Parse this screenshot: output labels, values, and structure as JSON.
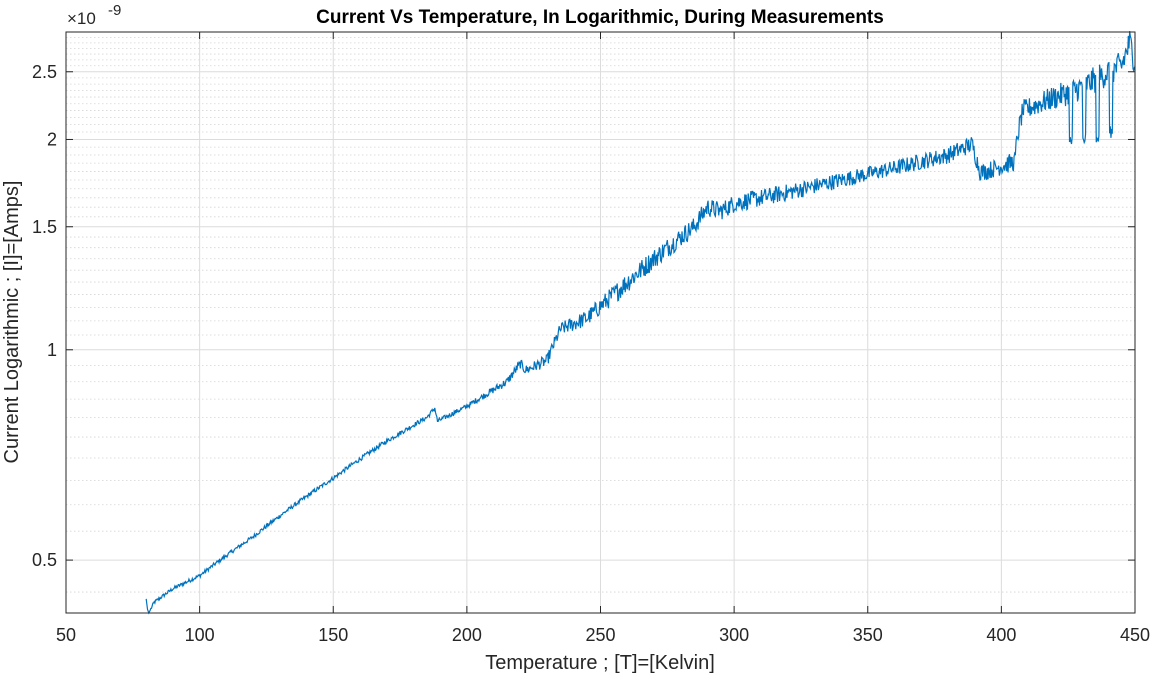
{
  "chart_data": {
    "type": "line",
    "title": "Current Vs Temperature, In Logarithmic, During Measurements",
    "xlabel": "Temperature ; [T]=[Kelvin]",
    "ylabel": "Current Logarithmic ; [I]=[Amps]",
    "y_exponent": {
      "times": "×10",
      "power": "-9"
    },
    "xlim": [
      50,
      450
    ],
    "ylim": [
      0.42,
      2.85
    ],
    "y_scale": "log",
    "grid": true,
    "minor_grid": true,
    "x_ticks": [
      50,
      100,
      150,
      200,
      250,
      300,
      350,
      400,
      450
    ],
    "x_tick_labels": [
      "50",
      "100",
      "150",
      "200",
      "250",
      "300",
      "350",
      "400",
      "450"
    ],
    "y_ticks": [
      0.5,
      1,
      1.5,
      2,
      2.5
    ],
    "y_tick_labels": [
      "0.5",
      "1",
      "1.5",
      "2",
      "2.5"
    ],
    "line_color": "#0072BD",
    "series": [
      {
        "anchors": [
          [
            80,
            0.44
          ],
          [
            80.5,
            0.425
          ],
          [
            81,
            0.42
          ],
          [
            83,
            0.435
          ],
          [
            90,
            0.455
          ],
          [
            100,
            0.475
          ],
          [
            120,
            0.54
          ],
          [
            150,
            0.655
          ],
          [
            170,
            0.74
          ],
          [
            185,
            0.8
          ],
          [
            188,
            0.825
          ],
          [
            189,
            0.79
          ],
          [
            200,
            0.83
          ],
          [
            215,
            0.9
          ],
          [
            220,
            0.955
          ],
          [
            222,
            0.935
          ],
          [
            230,
            0.965
          ],
          [
            235,
            1.07
          ],
          [
            245,
            1.11
          ],
          [
            255,
            1.2
          ],
          [
            265,
            1.3
          ],
          [
            275,
            1.4
          ],
          [
            285,
            1.5
          ],
          [
            290,
            1.6
          ],
          [
            295,
            1.58
          ],
          [
            300,
            1.62
          ],
          [
            320,
            1.68
          ],
          [
            340,
            1.75
          ],
          [
            360,
            1.82
          ],
          [
            380,
            1.9
          ],
          [
            389,
            1.97
          ],
          [
            392,
            1.8
          ],
          [
            394,
            1.8
          ],
          [
            405,
            1.86
          ],
          [
            406,
            2.02
          ],
          [
            408,
            2.2
          ],
          [
            420,
            2.3
          ],
          [
            427,
            2.35
          ],
          [
            432,
            2.4
          ],
          [
            440,
            2.5
          ],
          [
            445,
            2.55
          ],
          [
            448,
            2.75
          ],
          [
            450,
            2.6
          ]
        ],
        "noise_regions": [
          [
            80,
            0.006
          ],
          [
            200,
            0.008
          ],
          [
            230,
            0.02
          ],
          [
            260,
            0.035
          ],
          [
            300,
            0.03
          ],
          [
            350,
            0.025
          ],
          [
            400,
            0.03
          ],
          [
            420,
            0.04
          ],
          [
            450,
            0.05
          ]
        ],
        "dips": [
          [
            426,
            2.0
          ],
          [
            431,
            2.0
          ],
          [
            436,
            2.0
          ],
          [
            441,
            2.05
          ]
        ]
      }
    ]
  }
}
